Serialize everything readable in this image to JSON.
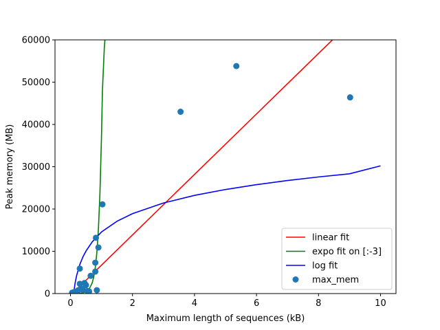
{
  "chart_data": {
    "type": "scatter",
    "xlabel": "Maximum length of sequences (kB)",
    "ylabel": "Peak memory (MB)",
    "xlim": [
      -0.5,
      10.5
    ],
    "ylim": [
      0,
      60000
    ],
    "xticks": [
      0,
      2,
      4,
      6,
      8,
      10
    ],
    "yticks": [
      0,
      10000,
      20000,
      30000,
      40000,
      50000,
      60000
    ],
    "grid": false,
    "legend_position": "lower-right",
    "scatter": {
      "name": "max_mem",
      "color": "#1f77b4",
      "points": [
        [
          0.05,
          200
        ],
        [
          0.1,
          300
        ],
        [
          0.15,
          400
        ],
        [
          0.2,
          500
        ],
        [
          0.25,
          800
        ],
        [
          0.3,
          2300
        ],
        [
          0.35,
          1200
        ],
        [
          0.4,
          900
        ],
        [
          0.45,
          2500
        ],
        [
          0.5,
          2000
        ],
        [
          0.55,
          600
        ],
        [
          0.3,
          5900
        ],
        [
          0.6,
          500
        ],
        [
          0.65,
          4200
        ],
        [
          0.8,
          5200
        ],
        [
          0.8,
          7300
        ],
        [
          0.82,
          13200
        ],
        [
          0.9,
          10900
        ],
        [
          0.85,
          800
        ],
        [
          1.03,
          21100
        ],
        [
          3.55,
          43000
        ],
        [
          5.35,
          53800
        ],
        [
          9.02,
          46400
        ]
      ]
    },
    "series": [
      {
        "name": "linear fit",
        "color": "#ff0000",
        "kind": "linear",
        "x": [
          0.06,
          8.45
        ],
        "y": [
          0,
          60000
        ]
      },
      {
        "name": "expo fit on [:-3]",
        "color": "#008000",
        "kind": "exponential",
        "x": [
          0.0,
          0.1,
          0.2,
          0.3,
          0.4,
          0.5,
          0.6,
          0.7,
          0.75,
          0.8,
          0.85,
          0.9,
          0.95,
          1.0,
          1.03,
          1.06,
          1.09,
          1.11
        ],
        "y": [
          5,
          12,
          28,
          70,
          170,
          420,
          1030,
          2530,
          3960,
          6200,
          9700,
          15200,
          23800,
          37200,
          48000,
          53000,
          58000,
          60000
        ]
      },
      {
        "name": "log fit",
        "color": "#0000ff",
        "kind": "logarithmic",
        "x": [
          0.1,
          0.15,
          0.2,
          0.3,
          0.4,
          0.5,
          0.7,
          1.0,
          1.5,
          2.0,
          3.0,
          4.0,
          5.0,
          6.0,
          7.0,
          8.0,
          9.0,
          10.0
        ],
        "y": [
          0,
          2540,
          4330,
          6860,
          8660,
          10050,
          12230,
          14570,
          17100,
          18900,
          21420,
          23220,
          24610,
          25760,
          26740,
          27580,
          28320,
          30200
        ]
      }
    ]
  }
}
